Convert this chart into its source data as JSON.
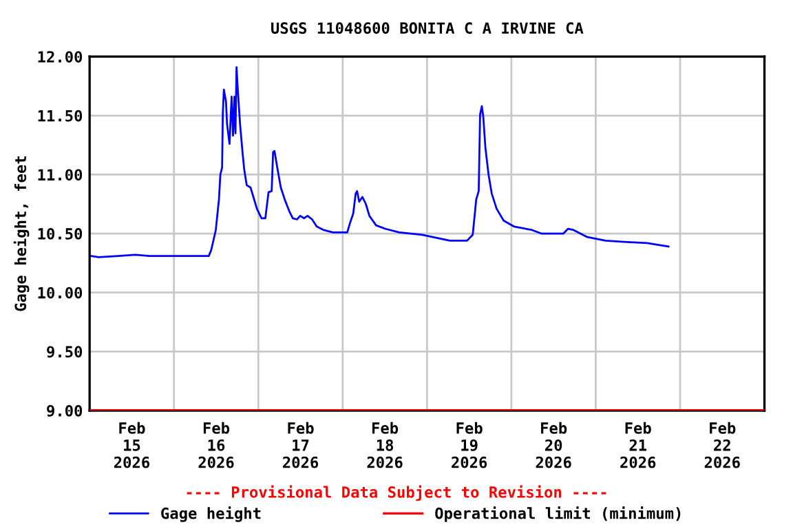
{
  "chart_data": {
    "type": "line",
    "title": "USGS 11048600 BONITA C A IRVINE CA",
    "ylabel": "Gage height, feet",
    "x": [
      "2026-02-15T00:24",
      "2026-02-15T02:36",
      "2026-02-15T08:12",
      "2026-02-15T13:00",
      "2026-02-15T17:00",
      "2026-02-16T09:54",
      "2026-02-16T10:36",
      "2026-02-16T11:54",
      "2026-02-16T12:48",
      "2026-02-16T13:12",
      "2026-02-16T13:42",
      "2026-02-16T13:54",
      "2026-02-16T14:12",
      "2026-02-16T14:48",
      "2026-02-16T15:06",
      "2026-02-16T15:48",
      "2026-02-16T16:24",
      "2026-02-16T16:48",
      "2026-02-16T17:12",
      "2026-02-16T17:30",
      "2026-02-16T17:48",
      "2026-02-16T18:12",
      "2026-02-16T18:48",
      "2026-02-16T19:30",
      "2026-02-16T20:00",
      "2026-02-16T20:42",
      "2026-02-16T21:48",
      "2026-02-16T22:36",
      "2026-02-16T23:36",
      "2026-02-17T00:54",
      "2026-02-17T02:00",
      "2026-02-17T02:54",
      "2026-02-17T03:48",
      "2026-02-17T04:12",
      "2026-02-17T04:36",
      "2026-02-17T05:30",
      "2026-02-17T06:24",
      "2026-02-17T07:30",
      "2026-02-17T08:48",
      "2026-02-17T09:48",
      "2026-02-17T11:00",
      "2026-02-17T11:54",
      "2026-02-17T13:00",
      "2026-02-17T14:00",
      "2026-02-17T15:18",
      "2026-02-17T16:36",
      "2026-02-17T18:36",
      "2026-02-17T21:12",
      "2026-02-18T01:18",
      "2026-02-18T02:06",
      "2026-02-18T03:00",
      "2026-02-18T03:42",
      "2026-02-18T04:06",
      "2026-02-18T04:42",
      "2026-02-18T05:36",
      "2026-02-18T06:36",
      "2026-02-18T07:36",
      "2026-02-18T09:30",
      "2026-02-18T12:12",
      "2026-02-18T16:06",
      "2026-02-18T22:36",
      "2026-02-19T06:30",
      "2026-02-19T11:24",
      "2026-02-19T13:00",
      "2026-02-19T14:00",
      "2026-02-19T14:42",
      "2026-02-19T15:06",
      "2026-02-19T15:36",
      "2026-02-19T16:00",
      "2026-02-19T16:36",
      "2026-02-19T17:30",
      "2026-02-19T18:24",
      "2026-02-19T19:48",
      "2026-02-19T21:48",
      "2026-02-20T00:42",
      "2026-02-20T05:54",
      "2026-02-20T08:30",
      "2026-02-20T14:48",
      "2026-02-20T16:06",
      "2026-02-20T17:42",
      "2026-02-20T21:36",
      "2026-02-21T02:48",
      "2026-02-21T08:00",
      "2026-02-21T14:36",
      "2026-02-21T20:42"
    ],
    "series": [
      {
        "name": "Gage height",
        "color": "#0000ff",
        "values": [
          10.31,
          10.3,
          10.31,
          10.32,
          10.31,
          10.31,
          10.36,
          10.53,
          10.79,
          11.0,
          11.06,
          11.52,
          11.72,
          11.62,
          11.43,
          11.26,
          11.66,
          11.33,
          11.66,
          11.35,
          11.91,
          11.7,
          11.43,
          11.19,
          11.04,
          10.91,
          10.89,
          10.81,
          10.71,
          10.63,
          10.63,
          10.85,
          10.86,
          11.19,
          11.2,
          11.04,
          10.89,
          10.79,
          10.69,
          10.63,
          10.62,
          10.65,
          10.63,
          10.65,
          10.62,
          10.56,
          10.53,
          10.51,
          10.51,
          10.59,
          10.67,
          10.84,
          10.86,
          10.77,
          10.81,
          10.75,
          10.65,
          10.57,
          10.54,
          10.51,
          10.49,
          10.44,
          10.44,
          10.49,
          10.79,
          10.86,
          11.51,
          11.58,
          11.49,
          11.23,
          11.0,
          10.84,
          10.71,
          10.61,
          10.56,
          10.53,
          10.5,
          10.5,
          10.54,
          10.53,
          10.47,
          10.44,
          10.43,
          10.42,
          10.39
        ]
      }
    ],
    "ref_lines": [
      {
        "axis": "y",
        "value": 9.0,
        "label": "Operational limit (minimum)",
        "color": "#ff0000"
      }
    ],
    "xlim": [
      "2026-02-15T00:00",
      "2026-02-23T00:00"
    ],
    "xticks": [
      {
        "value": "2026-02-16T00:00",
        "label": null
      },
      {
        "value": "2026-02-17T00:00",
        "label": null
      },
      {
        "value": "2026-02-18T00:00",
        "label": null
      },
      {
        "value": "2026-02-19T00:00",
        "label": null
      },
      {
        "value": "2026-02-20T00:00",
        "label": null
      },
      {
        "value": "2026-02-21T00:00",
        "label": null
      },
      {
        "value": "2026-02-22T00:00",
        "label": null
      },
      {
        "value": "2026-02-15T12:00",
        "label": "Feb\n15\n2026"
      },
      {
        "value": "2026-02-16T12:00",
        "label": "Feb\n16\n2026"
      },
      {
        "value": "2026-02-17T12:00",
        "label": "Feb\n17\n2026"
      },
      {
        "value": "2026-02-18T12:00",
        "label": "Feb\n18\n2026"
      },
      {
        "value": "2026-02-19T12:00",
        "label": "Feb\n19\n2026"
      },
      {
        "value": "2026-02-20T12:00",
        "label": "Feb\n20\n2026"
      },
      {
        "value": "2026-02-21T12:00",
        "label": "Feb\n21\n2026"
      },
      {
        "value": "2026-02-22T12:00",
        "label": "Feb\n22\n2026"
      }
    ],
    "ylim": [
      9.0,
      12.0
    ],
    "yticks": [
      {
        "value": 9.0,
        "label": "9.00"
      },
      {
        "value": 9.5,
        "label": "9.50"
      },
      {
        "value": 10.0,
        "label": "10.00"
      },
      {
        "value": 10.5,
        "label": "10.50"
      },
      {
        "value": 11.0,
        "label": "11.00"
      },
      {
        "value": 11.5,
        "label": "11.50"
      },
      {
        "value": 12.0,
        "label": "12.00"
      }
    ],
    "grid": true,
    "legend": "bottom",
    "annotations": [
      "---- Provisional Data Subject to Revision ----"
    ]
  }
}
